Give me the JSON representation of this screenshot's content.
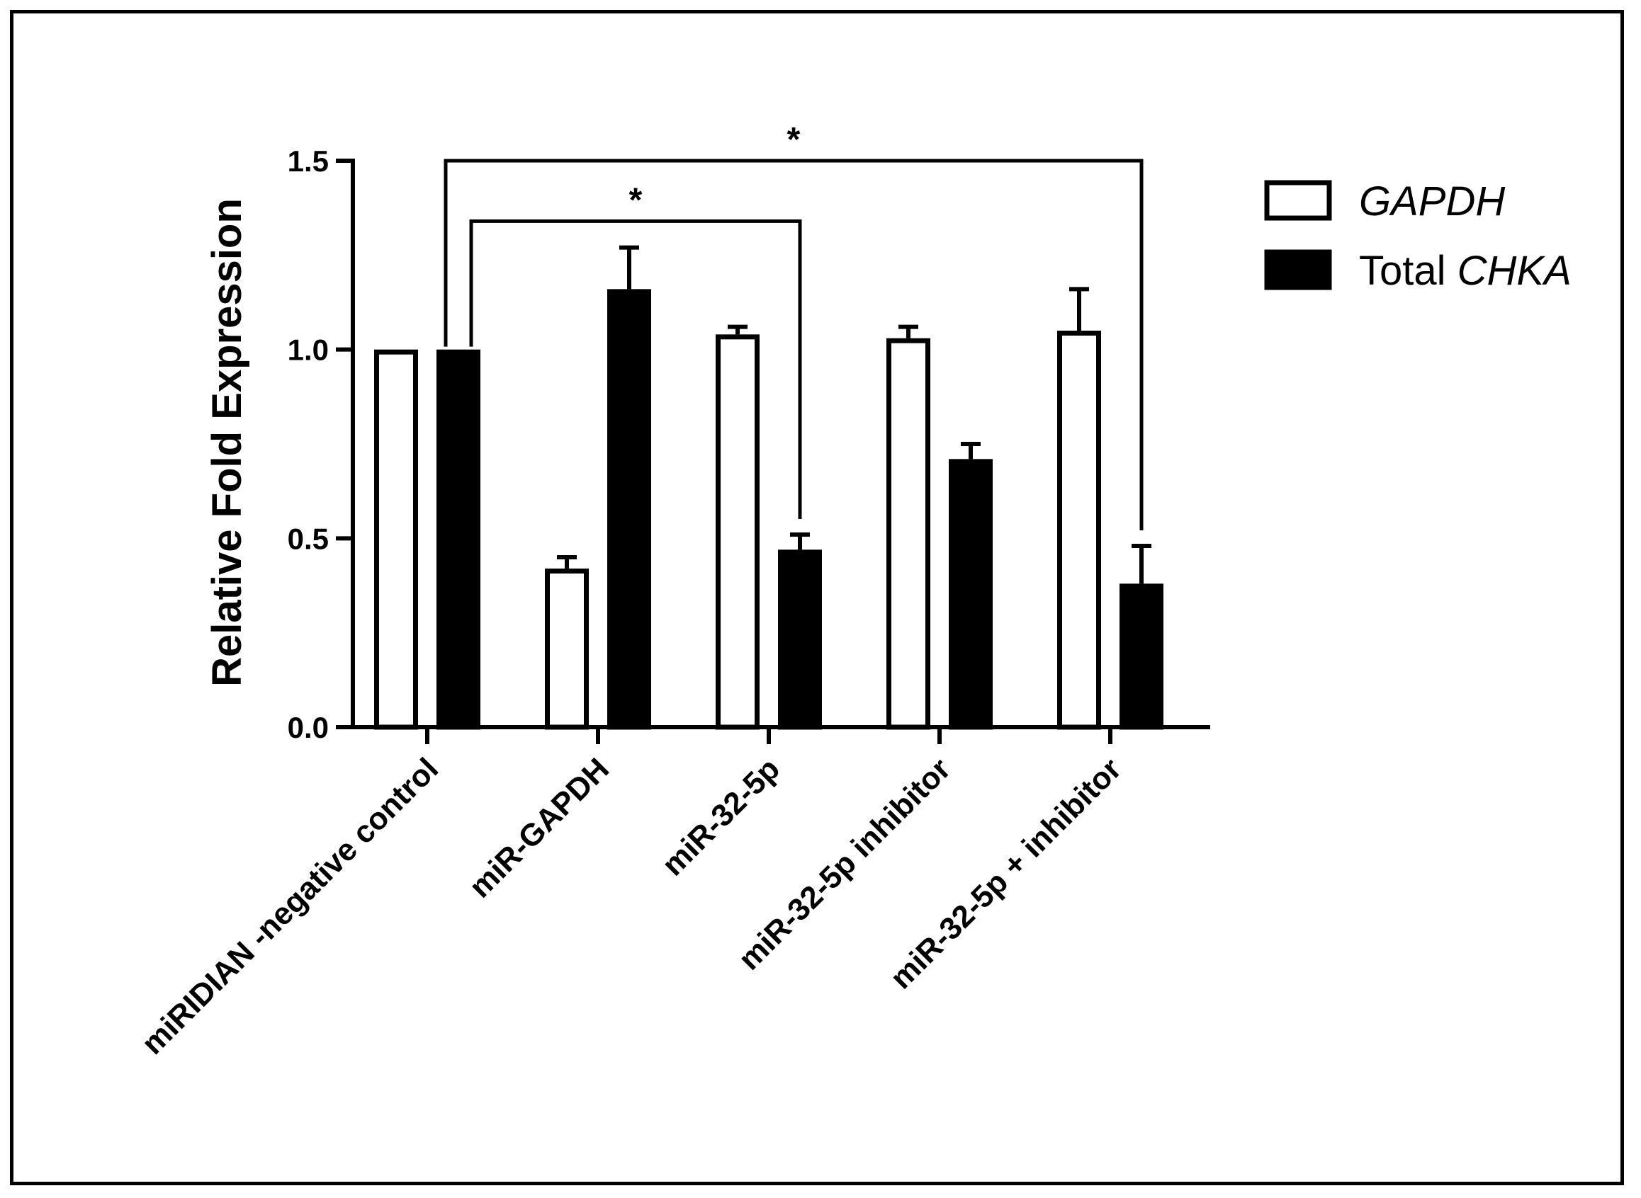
{
  "chart_data": {
    "type": "bar",
    "title": "",
    "xlabel": "",
    "ylabel": "Relative Fold Expression",
    "ylim": [
      0,
      1.5
    ],
    "yticks": [
      "0.0",
      "0.5",
      "1.0",
      "1.5"
    ],
    "categories": [
      "miRIDIAN -negative control",
      "miR-GAPDH",
      "miR-32-5p",
      "miR-32-5p inhibitor",
      "miR-32-5p + inhibitor"
    ],
    "series": [
      {
        "name": "GAPDH",
        "legend_parts": [
          {
            "text": "GAPDH",
            "italic": true
          }
        ],
        "fill": "#ffffff",
        "stroke": "#000000",
        "values": [
          1.0,
          0.42,
          1.04,
          1.03,
          1.05
        ],
        "errors": [
          0.0,
          0.03,
          0.02,
          0.03,
          0.11
        ]
      },
      {
        "name": "Total CHKA",
        "legend_parts": [
          {
            "text": "Total ",
            "italic": false
          },
          {
            "text": "CHKA",
            "italic": true
          }
        ],
        "fill": "#000000",
        "stroke": "#000000",
        "values": [
          1.0,
          1.16,
          0.47,
          0.71,
          0.38
        ],
        "errors": [
          0.0,
          0.11,
          0.04,
          0.04,
          0.1
        ]
      }
    ],
    "significance": [
      {
        "label": "*",
        "from_category": 0,
        "from_series": 1,
        "to_category": 2,
        "to_series": 1,
        "level": 1.34
      },
      {
        "label": "*",
        "from_category": 0,
        "from_series": 1,
        "to_category": 4,
        "to_series": 1,
        "level": 1.5
      }
    ],
    "legend_position": "top-right",
    "grid": false
  }
}
